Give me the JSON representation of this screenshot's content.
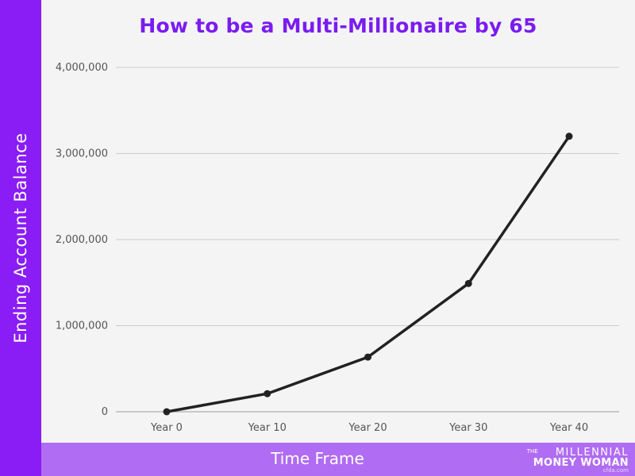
{
  "chart_data": {
    "type": "line",
    "title": "How to be a Multi-Millionaire by 65",
    "xlabel": "Time Frame",
    "ylabel": "Ending Account Balance",
    "categories": [
      "Year 0",
      "Year 10",
      "Year 20",
      "Year 30",
      "Year 40"
    ],
    "values": [
      0,
      210000,
      635000,
      1490000,
      3200000
    ],
    "ylim": [
      0,
      4000000
    ],
    "yticks": [
      0,
      1000000,
      2000000,
      3000000,
      4000000
    ],
    "ytick_labels": [
      "0",
      "1,000,000",
      "2,000,000",
      "3,000,000",
      "4,000,000"
    ],
    "grid": true,
    "legend": "none"
  },
  "colors": {
    "title": "#7a1cf0",
    "left_band": "#8a1cf5",
    "bottom_band": "#b06cf2",
    "line": "#222222",
    "grid": "#cccccc",
    "background": "#f4f4f4"
  },
  "logo": {
    "the": "THE",
    "line1": "MILLENNIAL",
    "line2": "MONEY WOMAN",
    "small": "cfda.com"
  }
}
